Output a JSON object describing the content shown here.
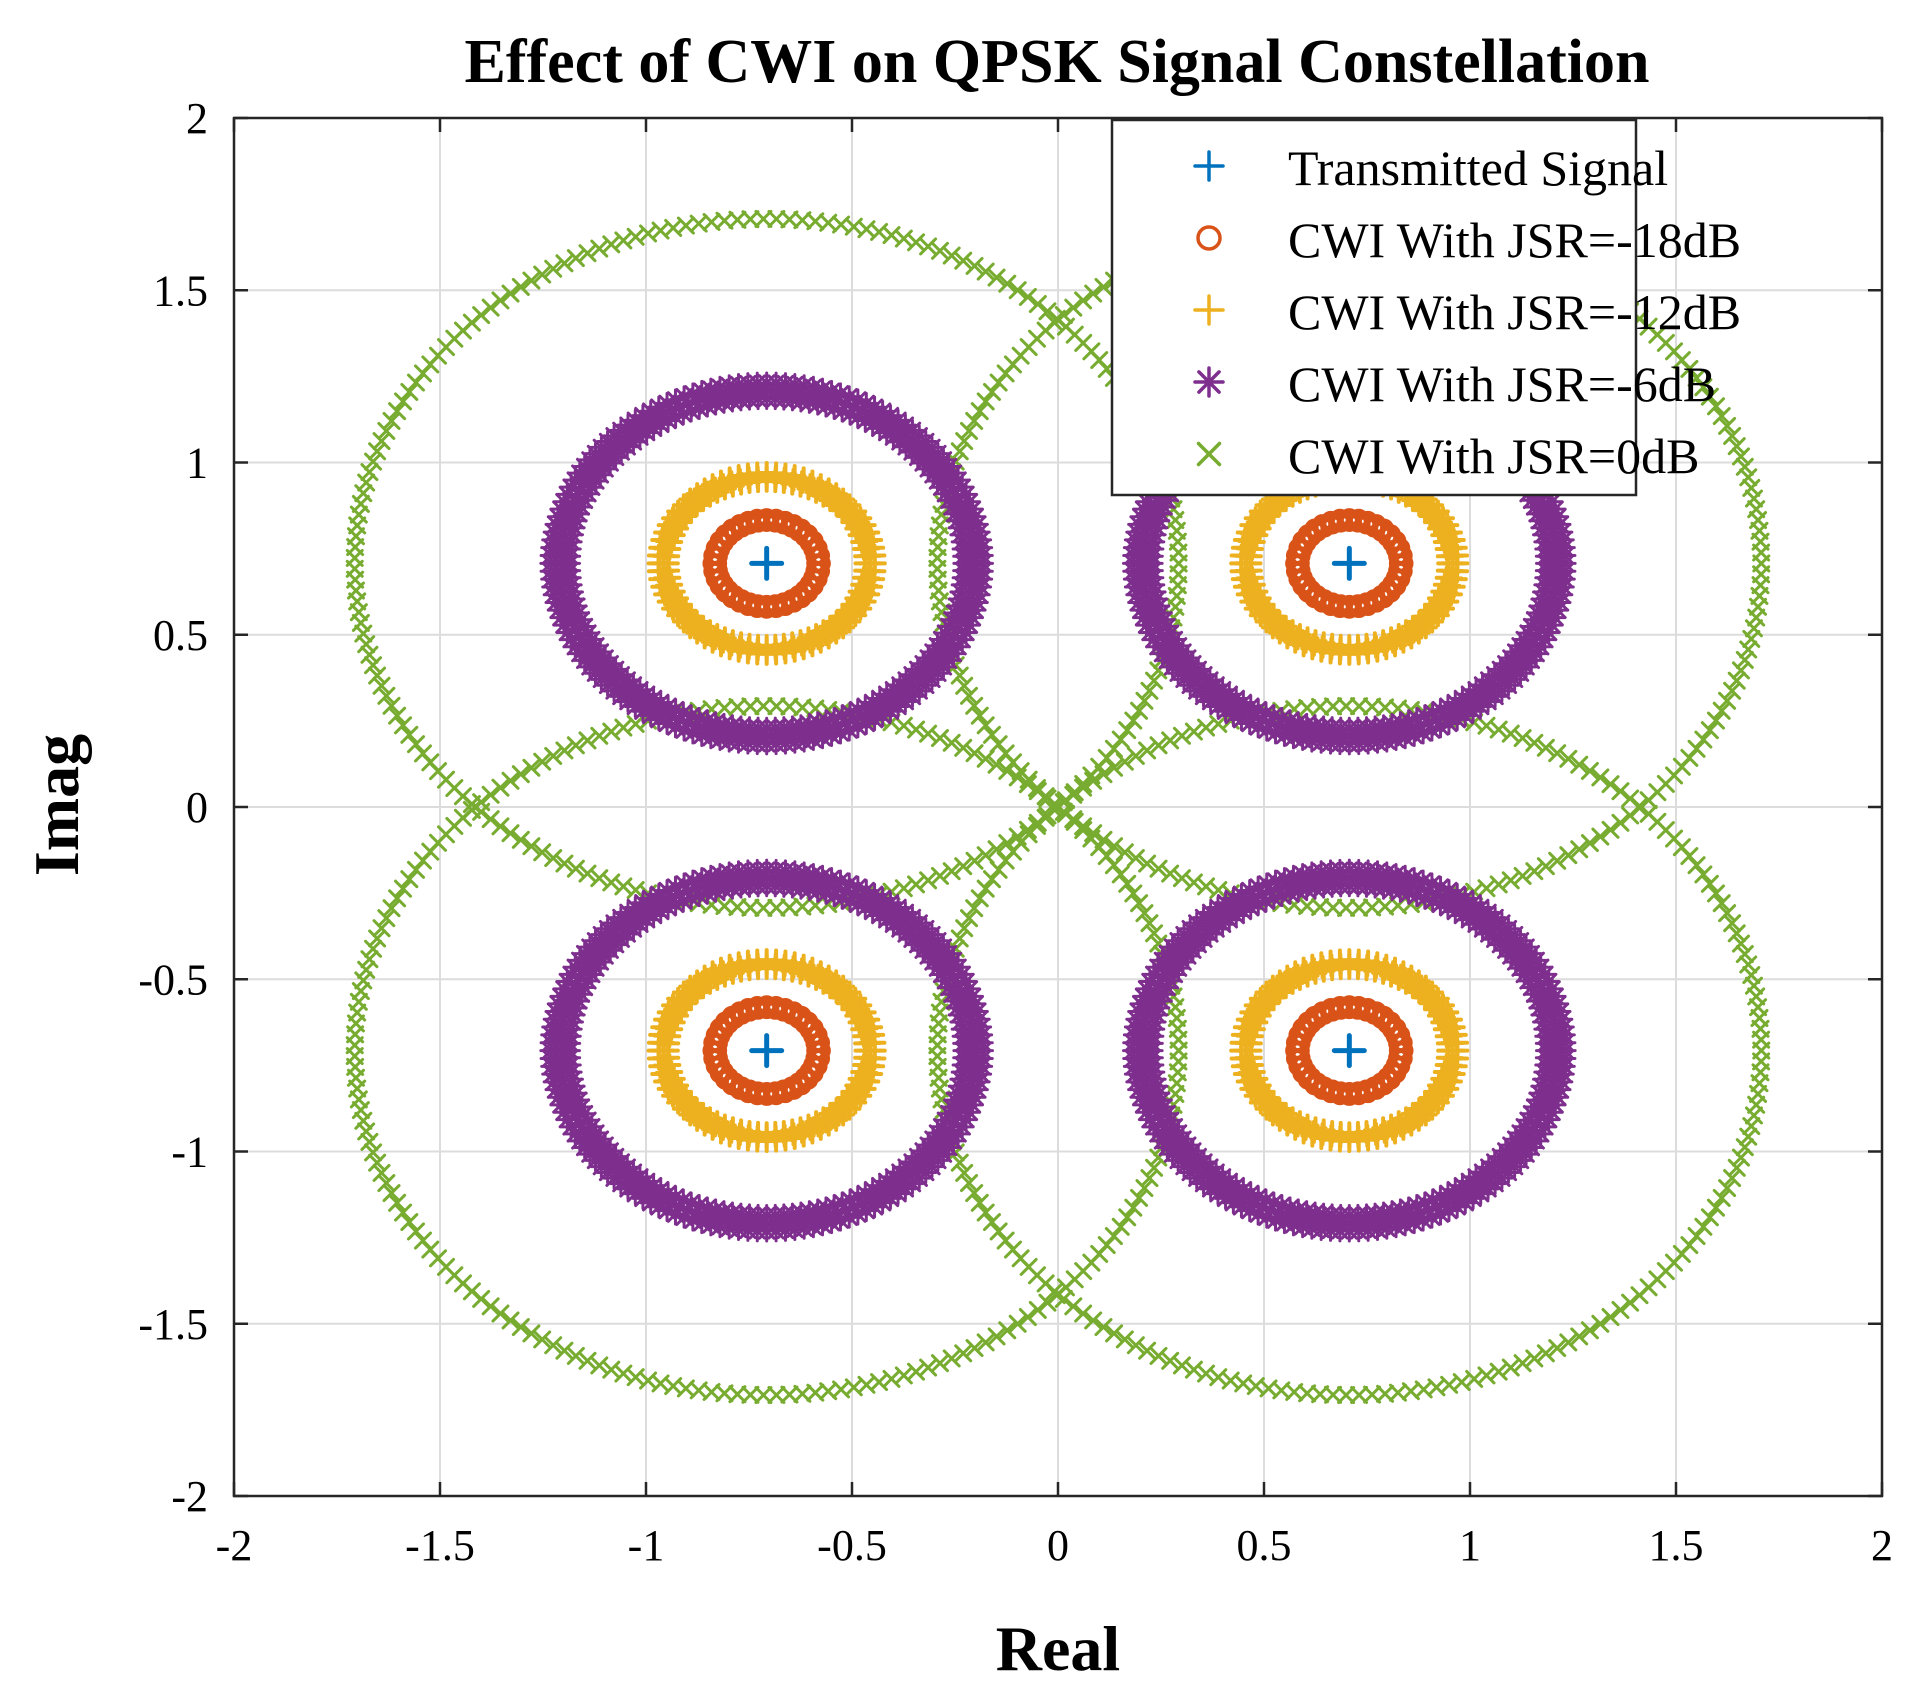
{
  "chart_data": {
    "type": "scatter",
    "title": "Effect of CWI on QPSK Signal Constellation",
    "xlabel": "Real",
    "ylabel": "Imag",
    "xlim": [
      -2,
      2
    ],
    "ylim": [
      -2,
      2
    ],
    "xticks": [
      -2,
      -1.5,
      -1,
      -0.5,
      0,
      0.5,
      1,
      1.5,
      2
    ],
    "yticks": [
      -2,
      -1.5,
      -1,
      -0.5,
      0,
      0.5,
      1,
      1.5,
      2
    ],
    "xtick_labels": [
      "-2",
      "-1.5",
      "-1",
      "-0.5",
      "0",
      "0.5",
      "1",
      "1.5",
      "2"
    ],
    "ytick_labels": [
      "-2",
      "-1.5",
      "-1",
      "-0.5",
      "0",
      "0.5",
      "1",
      "1.5",
      "2"
    ],
    "grid": true,
    "legend_position": "top-right",
    "constellation_points": [
      {
        "real": -0.7071,
        "imag": 0.7071
      },
      {
        "real": 0.7071,
        "imag": 0.7071
      },
      {
        "real": -0.7071,
        "imag": -0.7071
      },
      {
        "real": 0.7071,
        "imag": -0.7071
      }
    ],
    "series": [
      {
        "name": "Transmitted Signal",
        "marker": "plus",
        "color": "#0072BD",
        "ring_radius": 0
      },
      {
        "name": "CWI With JSR=-18dB",
        "marker": "circle",
        "color": "#D95319",
        "ring_radius": 0.1259
      },
      {
        "name": "CWI With JSR=-12dB",
        "marker": "plus",
        "color": "#EDB120",
        "ring_radius": 0.2512
      },
      {
        "name": "CWI With JSR=-6dB",
        "marker": "star",
        "color": "#7E2F8E",
        "ring_radius": 0.5012
      },
      {
        "name": "CWI With JSR=0dB",
        "marker": "x",
        "color": "#77AC30",
        "ring_radius": 1.0
      }
    ]
  }
}
